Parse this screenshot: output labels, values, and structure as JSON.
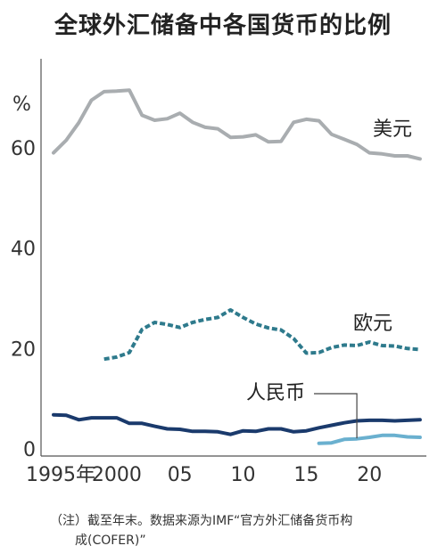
{
  "title": "全球外汇储备中各国货币的比例",
  "chart_data": {
    "type": "line",
    "unit": "%",
    "ylim": [
      0,
      80
    ],
    "xlim": [
      1995,
      2024
    ],
    "yticks": [
      {
        "value": 0,
        "label": "0"
      },
      {
        "value": 20,
        "label": "20"
      },
      {
        "value": 40,
        "label": "40"
      },
      {
        "value": 60,
        "label": "60"
      }
    ],
    "xticks": [
      {
        "value": 1995,
        "label": "1995年"
      },
      {
        "value": 2000,
        "label": "2000"
      },
      {
        "value": 2005,
        "label": "05"
      },
      {
        "value": 2010,
        "label": "10"
      },
      {
        "value": 2015,
        "label": "15"
      },
      {
        "value": 2020,
        "label": "20"
      }
    ],
    "series": [
      {
        "name": "美元",
        "color": "#a9adb0",
        "style": "solid",
        "x": [
          1995,
          1996,
          1997,
          1998,
          1999,
          2000,
          2001,
          2002,
          2003,
          2004,
          2005,
          2006,
          2007,
          2008,
          2009,
          2010,
          2011,
          2012,
          2013,
          2014,
          2015,
          2016,
          2017,
          2018,
          2019,
          2020,
          2021,
          2022,
          2023,
          2024
        ],
        "y": [
          59,
          61.5,
          65,
          69.5,
          71.2,
          71.3,
          71.5,
          66.5,
          65.5,
          65.8,
          66.9,
          65.1,
          64.1,
          63.8,
          62.1,
          62.2,
          62.6,
          61.2,
          61.3,
          65.1,
          65.7,
          65.4,
          62.7,
          61.7,
          60.7,
          59,
          58.8,
          58.4,
          58.4,
          57.8
        ]
      },
      {
        "name": "欧元",
        "color": "#2e7a8c",
        "style": "dashed",
        "x": [
          1999,
          2000,
          2001,
          2002,
          2003,
          2004,
          2005,
          2006,
          2007,
          2008,
          2009,
          2010,
          2011,
          2012,
          2013,
          2014,
          2015,
          2016,
          2017,
          2018,
          2019,
          2020,
          2021,
          2022,
          2023,
          2024
        ],
        "y": [
          17.9,
          18.3,
          19.2,
          23.8,
          25.2,
          24.8,
          24.2,
          25.2,
          25.8,
          26.2,
          27.7,
          26.2,
          24.9,
          24.1,
          23.7,
          22,
          19.1,
          19.2,
          20.2,
          20.7,
          20.6,
          21.3,
          20.6,
          20.5,
          20,
          19.8
        ]
      },
      {
        "name": "",
        "color": "#1a3a6c",
        "style": "solid",
        "x": [
          1995,
          1996,
          1997,
          1998,
          1999,
          2000,
          2001,
          2002,
          2003,
          2004,
          2005,
          2006,
          2007,
          2008,
          2009,
          2010,
          2011,
          2012,
          2013,
          2014,
          2015,
          2016,
          2017,
          2018,
          2019,
          2020,
          2021,
          2022,
          2023,
          2024
        ],
        "y": [
          6.8,
          6.7,
          5.8,
          6.2,
          6.2,
          6.2,
          5.1,
          5.1,
          4.5,
          4,
          3.9,
          3.5,
          3.5,
          3.4,
          2.9,
          3.6,
          3.5,
          4,
          4,
          3.4,
          3.6,
          4.2,
          4.7,
          5.2,
          5.6,
          5.7,
          5.7,
          5.6,
          5.7,
          5.8
        ]
      },
      {
        "name": "人民币",
        "color": "#6ab0cf",
        "style": "solid",
        "x": [
          2016,
          2017,
          2018,
          2019,
          2020,
          2021,
          2022,
          2023,
          2024
        ],
        "y": [
          1.1,
          1.2,
          1.9,
          2,
          2.3,
          2.7,
          2.7,
          2.4,
          2.3
        ]
      }
    ],
    "labels": [
      {
        "text": "美元",
        "series": 0
      },
      {
        "text": "欧元",
        "series": 1
      },
      {
        "text": "人民币",
        "series": 3
      }
    ]
  },
  "note": {
    "line1": "（注）截至年末。数据来源为IMF“官方外汇储备货币构",
    "line2": "成(COFER)”"
  }
}
